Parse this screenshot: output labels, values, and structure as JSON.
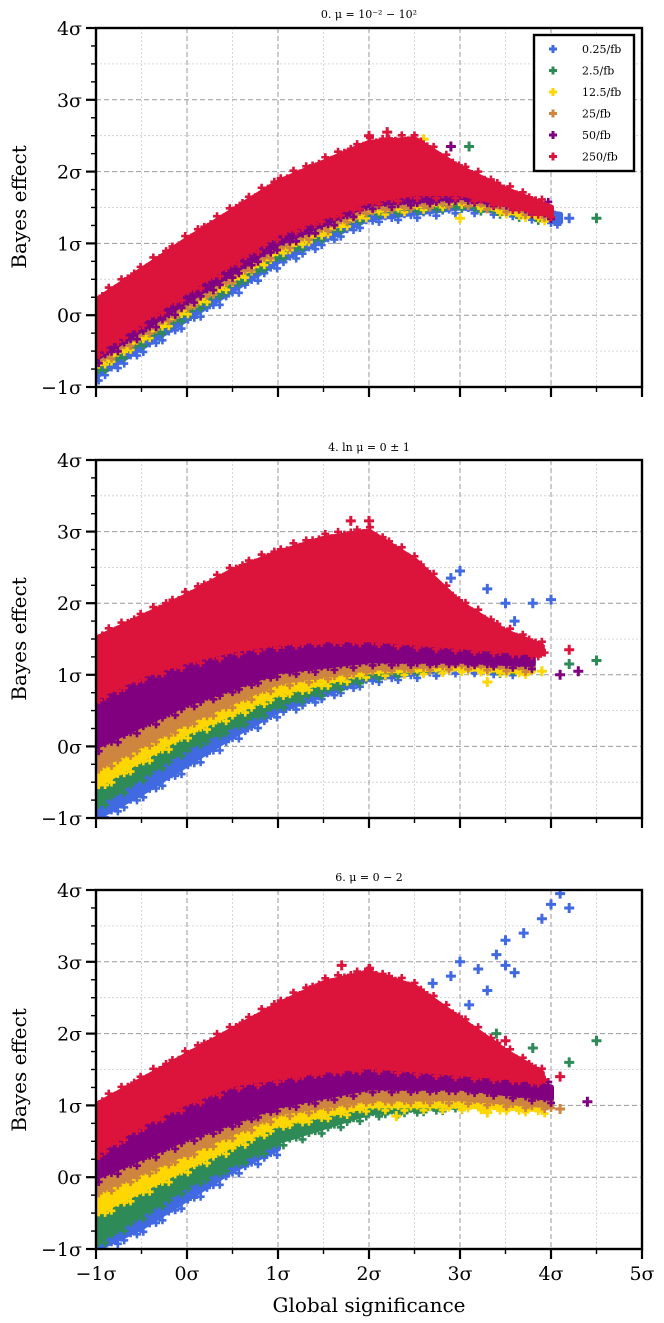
{
  "figure": {
    "xlabel": "Global significance",
    "ylabel": "Bayes effect"
  },
  "legend": [
    {
      "label": "0.25/fb",
      "color": "#4169e1"
    },
    {
      "label": "2.5/fb",
      "color": "#2e8b57"
    },
    {
      "label": "12.5/fb",
      "color": "#ffd700"
    },
    {
      "label": "25/fb",
      "color": "#cd853f"
    },
    {
      "label": "50/fb",
      "color": "#800080"
    },
    {
      "label": "250/fb",
      "color": "#dc143c"
    }
  ],
  "chart_data": [
    {
      "type": "scatter",
      "title": "0. μ = 10⁻² − 10²",
      "xlabel": "",
      "ylabel": "Bayes effect",
      "xlim": [
        -1,
        5
      ],
      "ylim": [
        -1,
        4
      ],
      "x_ticklabels": [],
      "y_ticks": [
        -1,
        0,
        1,
        2,
        3,
        4
      ],
      "y_ticklabels": [
        "−1σ",
        "0σ",
        "1σ",
        "2σ",
        "3σ",
        "4σ"
      ],
      "grid": true,
      "legend_position": "top-right",
      "series": [
        {
          "name": "0.25/fb",
          "color": "#4169e1",
          "band_x": [
            -1,
            0,
            1,
            2,
            3,
            3.5,
            4.1
          ],
          "band_lo": [
            -0.85,
            -0.05,
            0.75,
            1.35,
            1.5,
            1.45,
            1.3
          ],
          "band_hi": [
            -0.55,
            0.2,
            1.05,
            1.5,
            1.6,
            1.5,
            1.4
          ],
          "outliers": [
            [
              4.2,
              1.35
            ]
          ]
        },
        {
          "name": "2.5/fb",
          "color": "#2e8b57",
          "band_x": [
            -1,
            0,
            1,
            2,
            3,
            3.5,
            4
          ],
          "band_lo": [
            -0.75,
            0.05,
            0.85,
            1.45,
            1.55,
            1.45,
            1.35
          ],
          "band_hi": [
            -0.5,
            0.3,
            1.15,
            1.6,
            1.65,
            1.55,
            1.45
          ],
          "outliers": [
            [
              4.5,
              1.35
            ],
            [
              3.1,
              2.35
            ]
          ]
        },
        {
          "name": "12.5/fb",
          "color": "#ffd700",
          "band_x": [
            -1,
            0,
            1,
            2,
            3,
            3.5,
            4
          ],
          "band_lo": [
            -0.7,
            0.1,
            0.9,
            1.45,
            1.6,
            1.45,
            1.35
          ],
          "band_hi": [
            -0.45,
            0.35,
            1.2,
            1.65,
            1.7,
            1.55,
            1.45
          ],
          "outliers": [
            [
              3.0,
              1.35
            ],
            [
              2.6,
              2.45
            ]
          ]
        },
        {
          "name": "25/fb",
          "color": "#cd853f",
          "band_x": [
            -1,
            0,
            1,
            2,
            3,
            3.5,
            4
          ],
          "band_lo": [
            -0.65,
            0.15,
            0.95,
            1.5,
            1.6,
            1.5,
            1.4
          ],
          "band_hi": [
            -0.4,
            0.4,
            1.25,
            1.7,
            1.75,
            1.6,
            1.45
          ],
          "outliers": []
        },
        {
          "name": "50/fb",
          "color": "#800080",
          "band_x": [
            -1,
            0,
            1,
            2,
            3,
            3.5,
            4
          ],
          "band_lo": [
            -0.6,
            0.2,
            1.0,
            1.55,
            1.65,
            1.55,
            1.4
          ],
          "band_hi": [
            -0.3,
            0.5,
            1.3,
            1.8,
            1.8,
            1.65,
            1.5
          ],
          "outliers": [
            [
              2.9,
              2.35
            ]
          ]
        },
        {
          "name": "250/fb",
          "color": "#dc143c",
          "band_x": [
            -1,
            0,
            1,
            2,
            2.5,
            3,
            3.5,
            4
          ],
          "band_lo": [
            -0.5,
            0.35,
            1.15,
            1.6,
            1.7,
            1.7,
            1.55,
            1.4
          ],
          "band_hi": [
            0.2,
            1.05,
            1.85,
            2.4,
            2.45,
            2.05,
            1.75,
            1.5
          ],
          "outliers": [
            [
              2.2,
              2.55
            ],
            [
              2.0,
              2.5
            ]
          ]
        }
      ]
    },
    {
      "type": "scatter",
      "title": "4. ln μ = 0 ± 1",
      "xlabel": "",
      "ylabel": "Bayes effect",
      "xlim": [
        -1,
        5
      ],
      "ylim": [
        -1,
        4
      ],
      "x_ticklabels": [],
      "y_ticks": [
        -1,
        0,
        1,
        2,
        3,
        4
      ],
      "y_ticklabels": [
        "−1σ",
        "0σ",
        "1σ",
        "2σ",
        "3σ",
        "4σ"
      ],
      "grid": true,
      "series": [
        {
          "name": "0.25/fb",
          "color": "#4169e1",
          "band_x": [
            -1,
            -0.5,
            0,
            0.5,
            1,
            2,
            3,
            3.6
          ],
          "band_lo": [
            -1.0,
            -0.65,
            -0.25,
            0.15,
            0.5,
            0.95,
            1.1,
            1.05
          ],
          "band_hi": [
            -0.5,
            -0.15,
            0.2,
            0.55,
            0.8,
            1.05,
            1.2,
            1.15
          ],
          "outliers": [
            [
              3.0,
              2.45
            ],
            [
              3.3,
              2.2
            ],
            [
              3.5,
              2.0
            ],
            [
              3.8,
              2.0
            ],
            [
              4.0,
              2.05
            ],
            [
              3.2,
              1.8
            ],
            [
              2.9,
              2.35
            ],
            [
              3.6,
              1.75
            ]
          ]
        },
        {
          "name": "2.5/fb",
          "color": "#2e8b57",
          "band_x": [
            -1,
            0,
            1,
            2,
            3,
            3.6
          ],
          "band_lo": [
            -0.8,
            0.0,
            0.6,
            1.0,
            1.15,
            1.05
          ],
          "band_hi": [
            -0.3,
            0.35,
            0.85,
            1.1,
            1.25,
            1.15
          ],
          "outliers": [
            [
              4.2,
              1.15
            ],
            [
              4.5,
              1.2
            ]
          ]
        },
        {
          "name": "12.5/fb",
          "color": "#ffd700",
          "band_x": [
            -1,
            0,
            1,
            2,
            3,
            3.8
          ],
          "band_lo": [
            -0.55,
            0.2,
            0.75,
            1.05,
            1.1,
            1.05
          ],
          "band_hi": [
            -0.1,
            0.55,
            1.0,
            1.2,
            1.25,
            1.15
          ],
          "outliers": [
            [
              3.3,
              0.9
            ],
            [
              3.9,
              1.05
            ]
          ]
        },
        {
          "name": "25/fb",
          "color": "#cd853f",
          "band_x": [
            -1,
            0,
            1,
            2,
            3,
            3.8
          ],
          "band_lo": [
            -0.3,
            0.35,
            0.9,
            1.1,
            1.15,
            1.1
          ],
          "band_hi": [
            0.1,
            0.7,
            1.1,
            1.3,
            1.3,
            1.2
          ],
          "outliers": []
        },
        {
          "name": "50/fb",
          "color": "#800080",
          "band_x": [
            -1,
            0,
            1,
            2,
            3,
            3.8
          ],
          "band_lo": [
            0.0,
            0.6,
            1.05,
            1.2,
            1.2,
            1.15
          ],
          "band_hi": [
            0.7,
            1.2,
            1.5,
            1.65,
            1.55,
            1.3
          ],
          "outliers": [
            [
              4.1,
              1.0
            ],
            [
              4.3,
              1.05
            ]
          ]
        },
        {
          "name": "250/fb",
          "color": "#dc143c",
          "band_x": [
            -1,
            -0.5,
            0,
            0.5,
            1,
            1.5,
            2,
            2.5,
            3,
            3.5,
            3.9
          ],
          "band_lo": [
            0.7,
            1.0,
            1.2,
            1.35,
            1.45,
            1.5,
            1.5,
            1.45,
            1.4,
            1.35,
            1.3
          ],
          "band_hi": [
            1.5,
            1.8,
            2.1,
            2.45,
            2.7,
            2.9,
            3.0,
            2.6,
            2.0,
            1.6,
            1.4
          ],
          "outliers": [
            [
              1.8,
              3.15
            ],
            [
              2.0,
              3.15
            ],
            [
              4.2,
              1.35
            ],
            [
              3.7,
              1.5
            ]
          ]
        }
      ]
    },
    {
      "type": "scatter",
      "title": "6. μ = 0 − 2",
      "xlabel": "Global significance",
      "ylabel": "Bayes effect",
      "xlim": [
        -1,
        5
      ],
      "ylim": [
        -1,
        4
      ],
      "x_ticks": [
        -1,
        0,
        1,
        2,
        3,
        4,
        5
      ],
      "x_ticklabels": [
        "−1σ",
        "0σ",
        "1σ",
        "2σ",
        "3σ",
        "4σ",
        "5σ"
      ],
      "y_ticks": [
        -1,
        0,
        1,
        2,
        3,
        4
      ],
      "y_ticklabels": [
        "−1σ",
        "0σ",
        "1σ",
        "2σ",
        "3σ",
        "4σ"
      ],
      "grid": true,
      "series": [
        {
          "name": "0.25/fb",
          "color": "#4169e1",
          "band_x": [
            -1,
            -0.5,
            0,
            0.5,
            1
          ],
          "band_lo": [
            -1.0,
            -0.7,
            -0.3,
            0.1,
            0.4
          ],
          "band_hi": [
            -0.85,
            -0.45,
            -0.05,
            0.3,
            0.6
          ],
          "outliers": [
            [
              2.7,
              2.7
            ],
            [
              2.9,
              2.8
            ],
            [
              3.0,
              3.0
            ],
            [
              3.2,
              2.9
            ],
            [
              3.4,
              3.1
            ],
            [
              3.5,
              3.3
            ],
            [
              3.7,
              3.4
            ],
            [
              3.9,
              3.6
            ],
            [
              4.0,
              3.8
            ],
            [
              4.1,
              3.95
            ],
            [
              4.2,
              3.75
            ],
            [
              3.3,
              2.6
            ],
            [
              3.6,
              2.85
            ],
            [
              3.1,
              2.4
            ],
            [
              3.5,
              2.95
            ]
          ]
        },
        {
          "name": "2.5/fb",
          "color": "#2e8b57",
          "band_x": [
            -1,
            0,
            1,
            2,
            3
          ],
          "band_lo": [
            -0.9,
            -0.1,
            0.5,
            0.9,
            1.0
          ],
          "band_hi": [
            -0.3,
            0.4,
            0.85,
            1.05,
            1.15
          ],
          "outliers": [
            [
              4.5,
              1.9
            ],
            [
              3.8,
              1.8
            ],
            [
              4.2,
              1.6
            ],
            [
              3.4,
              2.0
            ]
          ]
        },
        {
          "name": "12.5/fb",
          "color": "#ffd700",
          "band_x": [
            -1,
            0,
            1,
            2,
            3,
            3.9
          ],
          "band_lo": [
            -0.5,
            0.15,
            0.75,
            1.0,
            1.0,
            0.95
          ],
          "band_hi": [
            -0.05,
            0.5,
            1.0,
            1.15,
            1.15,
            1.05
          ],
          "outliers": [
            [
              2.3,
              0.85
            ],
            [
              3.3,
              0.9
            ]
          ]
        },
        {
          "name": "25/fb",
          "color": "#cd853f",
          "band_x": [
            -1,
            0,
            1,
            2,
            3,
            4
          ],
          "band_lo": [
            -0.2,
            0.35,
            0.9,
            1.1,
            1.1,
            1.0
          ],
          "band_hi": [
            0.15,
            0.7,
            1.15,
            1.3,
            1.3,
            1.1
          ],
          "outliers": [
            [
              4.1,
              0.95
            ]
          ]
        },
        {
          "name": "50/fb",
          "color": "#800080",
          "band_x": [
            -1,
            0,
            1,
            2,
            3,
            4
          ],
          "band_lo": [
            0.0,
            0.55,
            1.0,
            1.25,
            1.25,
            1.1
          ],
          "band_hi": [
            0.55,
            1.05,
            1.4,
            1.55,
            1.5,
            1.25
          ],
          "outliers": [
            [
              4.4,
              1.05
            ]
          ]
        },
        {
          "name": "250/fb",
          "color": "#dc143c",
          "band_x": [
            -1,
            -0.5,
            0,
            0.5,
            1,
            1.5,
            2,
            2.5,
            3,
            3.5,
            3.9
          ],
          "band_lo": [
            0.35,
            0.75,
            1.05,
            1.3,
            1.4,
            1.5,
            1.55,
            1.5,
            1.45,
            1.4,
            1.35
          ],
          "band_hi": [
            1.0,
            1.35,
            1.7,
            2.05,
            2.4,
            2.7,
            2.85,
            2.65,
            2.2,
            1.75,
            1.45
          ],
          "outliers": [
            [
              1.7,
              2.95
            ],
            [
              2.0,
              2.9
            ],
            [
              3.5,
              1.9
            ],
            [
              4.1,
              1.4
            ]
          ]
        }
      ]
    }
  ]
}
